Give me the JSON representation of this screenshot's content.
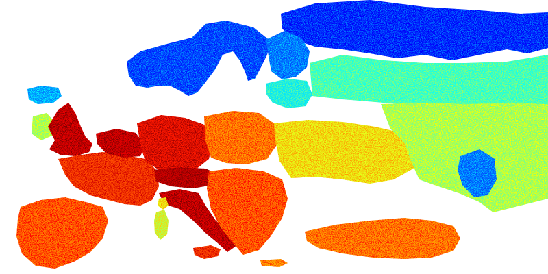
{
  "map": {
    "colormap": [
      "#00007f",
      "#0000ff",
      "#007fff",
      "#00ffff",
      "#7fff7f",
      "#ffff00",
      "#ff7f00",
      "#ff0000",
      "#7f0000"
    ],
    "background_color": "#ffffff",
    "has_legend": false,
    "has_labels": false,
    "regions": [
      {
        "name": "scandinavia",
        "level": 0.15
      },
      {
        "name": "northern-russia",
        "level": 0.12
      },
      {
        "name": "finland",
        "level": 0.2
      },
      {
        "name": "baltic-states",
        "level": 0.35
      },
      {
        "name": "western-russia",
        "level": 0.4
      },
      {
        "name": "iceland",
        "level": 0.25
      },
      {
        "name": "ireland",
        "level": 0.5
      },
      {
        "name": "great-britain",
        "level": 0.9
      },
      {
        "name": "france",
        "level": 0.8
      },
      {
        "name": "benelux",
        "level": 0.9
      },
      {
        "name": "germany",
        "level": 0.85
      },
      {
        "name": "poland",
        "level": 0.72
      },
      {
        "name": "alps",
        "level": 0.92
      },
      {
        "name": "iberia",
        "level": 0.75
      },
      {
        "name": "italy",
        "level": 0.9
      },
      {
        "name": "balkans",
        "level": 0.75
      },
      {
        "name": "ukraine",
        "level": 0.6
      },
      {
        "name": "eastern-russia",
        "level": 0.5
      },
      {
        "name": "volga-region",
        "level": 0.2
      },
      {
        "name": "turkey",
        "level": 0.72
      },
      {
        "name": "sardinia",
        "level": 0.55
      },
      {
        "name": "corsica",
        "level": 0.6
      },
      {
        "name": "sicily",
        "level": 0.8
      },
      {
        "name": "crete",
        "level": 0.7
      }
    ]
  }
}
